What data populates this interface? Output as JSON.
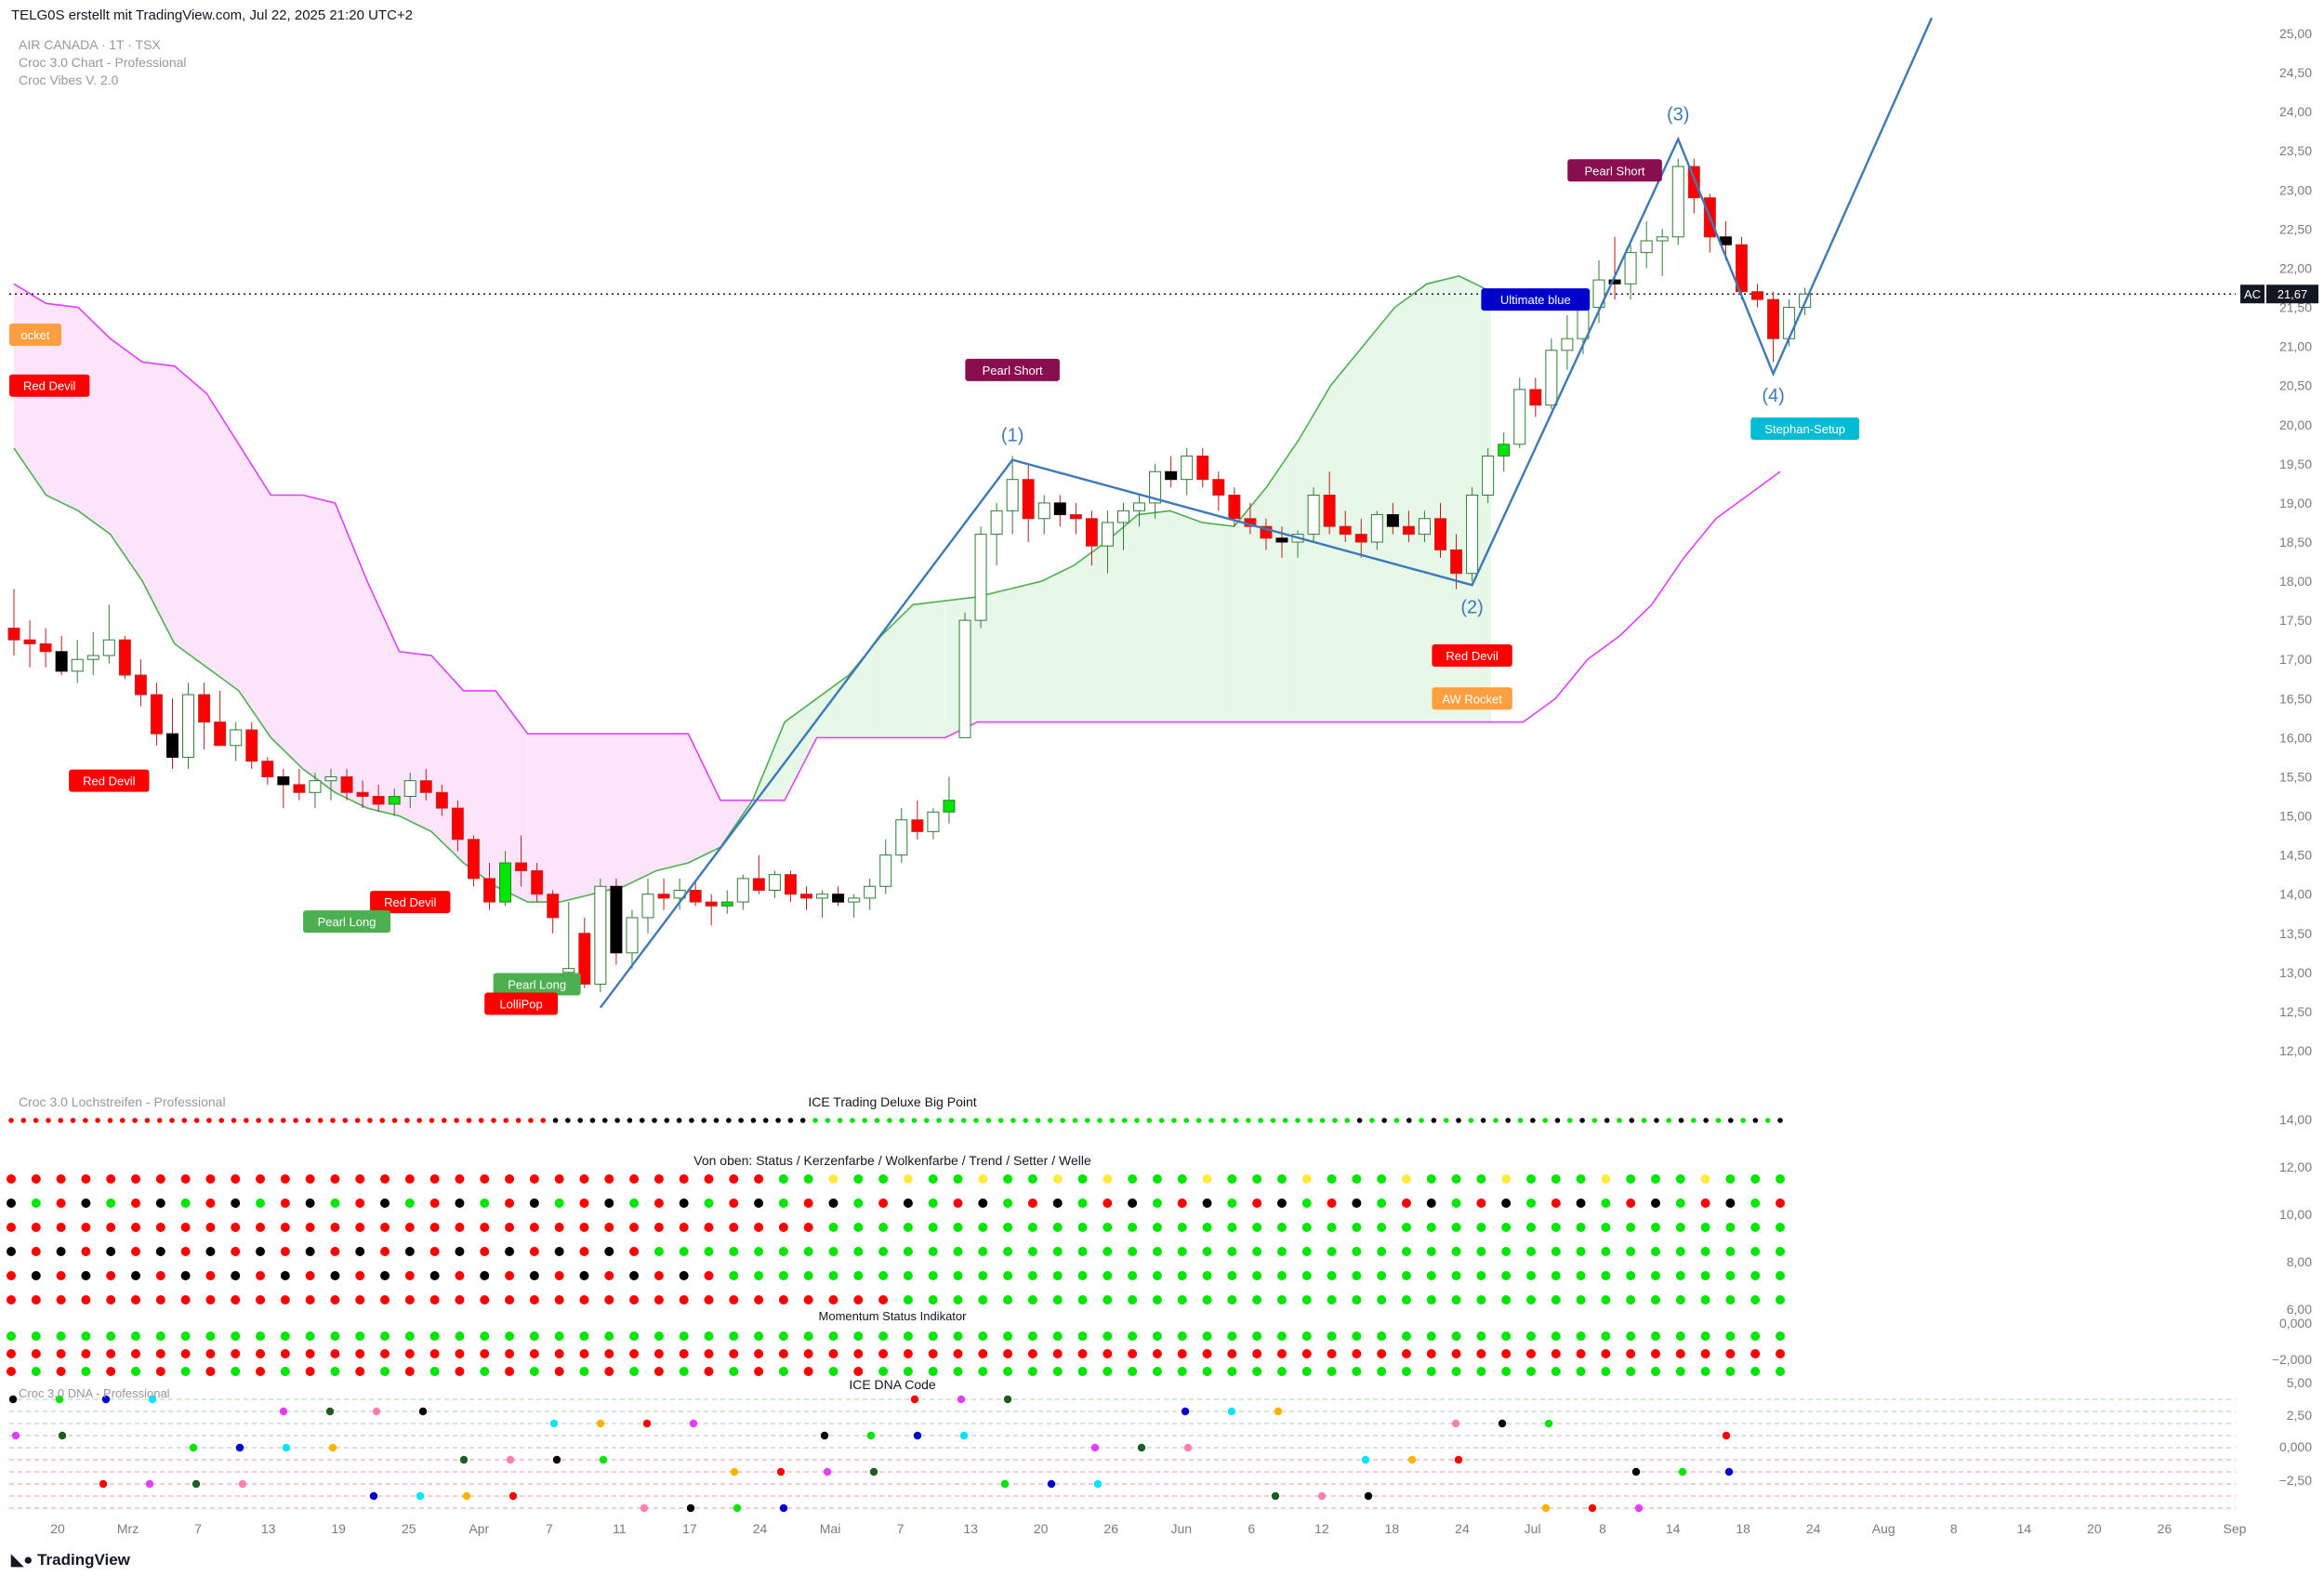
{
  "header": {
    "caption": "TELG0S erstellt mit TradingView.com, Jul 22, 2025 21:20 UTC+2"
  },
  "legend": {
    "symbol": "AIR CANADA · 1T · TSX",
    "indicator1": "Croc 3.0 Chart - Professional",
    "indicator2": "Croc Vibes V. 2.0"
  },
  "panes": {
    "lochstreifen": "Croc 3.0 Lochstreifen - Professional",
    "ice_big_point": "ICE Trading Deluxe Big Point",
    "status_title": "Von oben: Status / Kerzenfarbe / Wolkenfarbe / Trend / Setter / Welle",
    "momentum": "Momentum Status Indikator",
    "dna_pane": "Croc 3.0 DNA - Professional",
    "dna_title": "ICE DNA Code"
  },
  "branding": {
    "tv": "TradingView"
  },
  "colors": {
    "bull": "#00e600",
    "bear": "#ff0000",
    "wave": "#3d7ab8",
    "cloud_upper": "#e040fb",
    "cloud_lower": "#4caf50",
    "cloud_fill_bear": "#fce4fa",
    "cloud_fill_bull": "#e8f8e8",
    "price_line": "#131722"
  },
  "chart_data": {
    "type": "candlestick",
    "symbol": "AC",
    "exchange": "TSX",
    "interval": "1T",
    "last_price": 21.67,
    "price_label": "21,67",
    "ticker_label": "AC",
    "y_ticks": [
      "25,00",
      "24,50",
      "24,00",
      "23,50",
      "23,00",
      "22,50",
      "22,00",
      "21,50",
      "21,00",
      "20,50",
      "20,00",
      "19,50",
      "19,00",
      "18,50",
      "18,00",
      "17,50",
      "17,00",
      "16,50",
      "16,00",
      "15,50",
      "15,00",
      "14,50",
      "14,00",
      "13,50",
      "13,00",
      "12,50",
      "12,00"
    ],
    "y_range": [
      12.0,
      25.0
    ],
    "x_ticks": [
      "20",
      "Mrz",
      "7",
      "13",
      "19",
      "25",
      "Apr",
      "7",
      "11",
      "17",
      "24",
      "Mai",
      "7",
      "13",
      "20",
      "26",
      "Jun",
      "6",
      "12",
      "18",
      "24",
      "Jul",
      "8",
      "14",
      "18",
      "24",
      "Aug",
      "8",
      "14",
      "20",
      "26",
      "Sep"
    ],
    "ohlc": [
      [
        17.4,
        17.9,
        17.05,
        17.25
      ],
      [
        17.25,
        17.5,
        16.9,
        17.2
      ],
      [
        17.2,
        17.4,
        16.9,
        17.1
      ],
      [
        17.1,
        17.3,
        16.8,
        16.85
      ],
      [
        16.85,
        17.25,
        16.7,
        17.0
      ],
      [
        17.0,
        17.35,
        16.8,
        17.05
      ],
      [
        17.05,
        17.7,
        16.95,
        17.25
      ],
      [
        17.25,
        17.3,
        16.75,
        16.8
      ],
      [
        16.8,
        17.0,
        16.4,
        16.55
      ],
      [
        16.55,
        16.7,
        15.9,
        16.05
      ],
      [
        16.05,
        16.5,
        15.6,
        15.75
      ],
      [
        15.75,
        16.7,
        15.6,
        16.55
      ],
      [
        16.55,
        16.7,
        15.85,
        16.2
      ],
      [
        16.2,
        16.6,
        15.9,
        15.9
      ],
      [
        15.9,
        16.2,
        15.7,
        16.1
      ],
      [
        16.1,
        16.2,
        15.6,
        15.7
      ],
      [
        15.7,
        15.75,
        15.4,
        15.5
      ],
      [
        15.5,
        15.6,
        15.1,
        15.4
      ],
      [
        15.4,
        15.6,
        15.2,
        15.3
      ],
      [
        15.3,
        15.55,
        15.1,
        15.45
      ],
      [
        15.45,
        15.6,
        15.2,
        15.5
      ],
      [
        15.5,
        15.6,
        15.2,
        15.3
      ],
      [
        15.3,
        15.45,
        15.1,
        15.25
      ],
      [
        15.25,
        15.4,
        15.05,
        15.15
      ],
      [
        15.15,
        15.35,
        15.0,
        15.25
      ],
      [
        15.25,
        15.55,
        15.1,
        15.45
      ],
      [
        15.45,
        15.6,
        15.2,
        15.3
      ],
      [
        15.3,
        15.4,
        15.0,
        15.1
      ],
      [
        15.1,
        15.2,
        14.55,
        14.7
      ],
      [
        14.7,
        14.75,
        14.1,
        14.2
      ],
      [
        14.2,
        14.4,
        13.8,
        13.9
      ],
      [
        13.9,
        14.55,
        13.85,
        14.4
      ],
      [
        14.4,
        14.75,
        14.1,
        14.3
      ],
      [
        14.3,
        14.4,
        13.9,
        14.0
      ],
      [
        14.0,
        14.05,
        13.5,
        13.7
      ],
      [
        13.0,
        13.9,
        12.9,
        13.05
      ],
      [
        13.5,
        13.7,
        12.8,
        12.85
      ],
      [
        12.85,
        14.2,
        12.75,
        14.1
      ],
      [
        14.1,
        14.2,
        13.1,
        13.25
      ],
      [
        13.25,
        13.8,
        13.05,
        13.7
      ],
      [
        13.7,
        14.2,
        13.5,
        14.0
      ],
      [
        14.0,
        14.2,
        13.8,
        13.95
      ],
      [
        13.95,
        14.2,
        13.8,
        14.05
      ],
      [
        14.05,
        14.15,
        13.85,
        13.9
      ],
      [
        13.9,
        14.0,
        13.6,
        13.85
      ],
      [
        13.85,
        14.05,
        13.75,
        13.9
      ],
      [
        13.9,
        14.25,
        13.8,
        14.2
      ],
      [
        14.2,
        14.5,
        14.0,
        14.05
      ],
      [
        14.05,
        14.3,
        13.95,
        14.25
      ],
      [
        14.25,
        14.3,
        13.9,
        14.0
      ],
      [
        14.0,
        14.1,
        13.8,
        13.95
      ],
      [
        13.95,
        14.05,
        13.7,
        14.0
      ],
      [
        14.0,
        14.1,
        13.85,
        13.9
      ],
      [
        13.9,
        14.0,
        13.7,
        13.95
      ],
      [
        13.95,
        14.2,
        13.8,
        14.1
      ],
      [
        14.1,
        14.7,
        14.0,
        14.5
      ],
      [
        14.5,
        15.1,
        14.4,
        14.95
      ],
      [
        14.95,
        15.2,
        14.7,
        14.8
      ],
      [
        14.8,
        15.1,
        14.7,
        15.05
      ],
      [
        15.05,
        15.5,
        14.9,
        15.2
      ],
      [
        16.0,
        17.6,
        16.0,
        17.5
      ],
      [
        17.5,
        18.7,
        17.4,
        18.6
      ],
      [
        18.6,
        19.0,
        18.2,
        18.9
      ],
      [
        18.9,
        19.6,
        18.6,
        19.3
      ],
      [
        19.3,
        19.5,
        18.5,
        18.8
      ],
      [
        18.8,
        19.1,
        18.6,
        19.0
      ],
      [
        19.0,
        19.1,
        18.7,
        18.85
      ],
      [
        18.85,
        19.0,
        18.6,
        18.8
      ],
      [
        18.8,
        18.9,
        18.2,
        18.45
      ],
      [
        18.45,
        18.9,
        18.1,
        18.75
      ],
      [
        18.75,
        19.0,
        18.4,
        18.9
      ],
      [
        18.9,
        19.1,
        18.7,
        19.0
      ],
      [
        19.0,
        19.5,
        18.8,
        19.4
      ],
      [
        19.4,
        19.6,
        19.2,
        19.3
      ],
      [
        19.3,
        19.7,
        19.1,
        19.6
      ],
      [
        19.6,
        19.7,
        19.2,
        19.3
      ],
      [
        19.3,
        19.4,
        18.9,
        19.1
      ],
      [
        19.1,
        19.2,
        18.7,
        18.8
      ],
      [
        18.8,
        19.0,
        18.6,
        18.7
      ],
      [
        18.7,
        18.8,
        18.4,
        18.55
      ],
      [
        18.55,
        18.7,
        18.3,
        18.5
      ],
      [
        18.5,
        18.65,
        18.3,
        18.6
      ],
      [
        18.6,
        19.2,
        18.5,
        19.1
      ],
      [
        19.1,
        19.4,
        18.6,
        18.7
      ],
      [
        18.7,
        18.9,
        18.5,
        18.6
      ],
      [
        18.6,
        18.8,
        18.3,
        18.5
      ],
      [
        18.5,
        18.9,
        18.4,
        18.85
      ],
      [
        18.85,
        19.0,
        18.6,
        18.7
      ],
      [
        18.7,
        18.9,
        18.5,
        18.6
      ],
      [
        18.6,
        18.9,
        18.5,
        18.8
      ],
      [
        18.8,
        19.0,
        18.3,
        18.4
      ],
      [
        18.4,
        18.6,
        17.9,
        18.1
      ],
      [
        18.1,
        19.2,
        18.0,
        19.1
      ],
      [
        19.1,
        19.7,
        19.0,
        19.6
      ],
      [
        19.6,
        19.9,
        19.4,
        19.75
      ],
      [
        19.75,
        20.6,
        19.7,
        20.45
      ],
      [
        20.45,
        20.6,
        20.1,
        20.25
      ],
      [
        20.25,
        21.1,
        20.2,
        20.95
      ],
      [
        20.95,
        21.4,
        20.7,
        21.1
      ],
      [
        21.1,
        21.7,
        20.9,
        21.5
      ],
      [
        21.5,
        22.1,
        21.3,
        21.85
      ],
      [
        21.85,
        22.4,
        21.6,
        21.8
      ],
      [
        21.8,
        22.3,
        21.6,
        22.2
      ],
      [
        22.2,
        22.6,
        22.0,
        22.35
      ],
      [
        22.35,
        22.5,
        21.9,
        22.4
      ],
      [
        22.4,
        23.4,
        22.3,
        23.3
      ],
      [
        23.3,
        23.4,
        22.7,
        22.9
      ],
      [
        22.9,
        22.95,
        22.2,
        22.4
      ],
      [
        22.4,
        22.6,
        22.1,
        22.3
      ],
      [
        22.3,
        22.4,
        21.6,
        21.7
      ],
      [
        21.7,
        21.8,
        21.5,
        21.6
      ],
      [
        21.6,
        21.7,
        20.8,
        21.1
      ],
      [
        21.1,
        21.6,
        21.0,
        21.5
      ],
      [
        21.5,
        21.75,
        21.4,
        21.67
      ]
    ],
    "cloud_upper": [
      21.8,
      21.55,
      21.5,
      21.1,
      20.8,
      20.75,
      20.4,
      19.75,
      19.1,
      19.1,
      19.0,
      18.0,
      17.1,
      17.05,
      16.6,
      16.6,
      16.05,
      16.05,
      16.05,
      16.05,
      16.05,
      16.05,
      15.2,
      15.2,
      15.2,
      16.0,
      16.0,
      16.0,
      16.0,
      16.0,
      16.2,
      16.2,
      16.2,
      16.2,
      16.2,
      16.2,
      16.2,
      16.2,
      16.2,
      16.2,
      16.2,
      16.2,
      16.2,
      16.2,
      16.2,
      16.2,
      16.2,
      16.2,
      16.5,
      17.0,
      17.3,
      17.7,
      18.3,
      18.8,
      19.1,
      19.4
    ],
    "cloud_lower": [
      19.7,
      19.1,
      18.9,
      18.6,
      18.0,
      17.2,
      16.9,
      16.6,
      16.0,
      15.6,
      15.3,
      15.1,
      15.0,
      14.8,
      14.4,
      14.1,
      13.9,
      13.9,
      14.0,
      14.1,
      14.3,
      14.4,
      14.6,
      15.2,
      16.2,
      16.5,
      16.8,
      17.3,
      17.7,
      17.75,
      17.8,
      17.9,
      18.0,
      18.2,
      18.5,
      18.85,
      18.9,
      18.75,
      18.7,
      19.2,
      19.8,
      20.5,
      21.0,
      21.5,
      21.8,
      21.9,
      21.7
    ],
    "wave_points": [
      {
        "label": "",
        "date_idx": 37,
        "price": 12.55
      },
      {
        "label": "(1)",
        "date_idx": 63,
        "price": 19.55
      },
      {
        "label": "(2)",
        "date_idx": 92,
        "price": 17.95
      },
      {
        "label": "(3)",
        "date_idx": 105,
        "price": 23.65
      },
      {
        "label": "(4)",
        "date_idx": 111,
        "price": 20.65
      },
      {
        "label": "",
        "date_idx": 121,
        "price": 25.2
      }
    ],
    "signals": [
      {
        "text": "Pearl Short",
        "date_idx": 63,
        "price": 20.7,
        "color": "#880e4f"
      },
      {
        "text": "Pearl Short",
        "date_idx": 101,
        "price": 23.25,
        "color": "#880e4f"
      },
      {
        "text": "Ultimate blue",
        "date_idx": 96,
        "price": 21.6,
        "color": "#0000cc"
      },
      {
        "text": "Stephan-Setup",
        "date_idx": 113,
        "price": 19.95,
        "color": "#00bcd4"
      },
      {
        "text": "Red Devil",
        "date_idx": 92,
        "price": 17.05,
        "color": "#ff0000"
      },
      {
        "text": "AW Rocket",
        "date_idx": 92,
        "price": 16.5,
        "color": "#ff9f40"
      },
      {
        "text": "Red Devil",
        "date_idx": 6,
        "price": 15.45,
        "color": "#ff0000"
      },
      {
        "text": "Red Devil",
        "date_idx": 25,
        "price": 13.9,
        "color": "#ff0000"
      },
      {
        "text": "Pearl Long",
        "date_idx": 21,
        "price": 13.65,
        "color": "#4caf50"
      },
      {
        "text": "Pearl Long",
        "date_idx": 33,
        "price": 12.85,
        "color": "#4caf50"
      },
      {
        "text": "LolliPop",
        "date_idx": 32,
        "price": 12.6,
        "color": "#ff0000"
      },
      {
        "text": "Red Devil",
        "date_idx": 0,
        "price": 20.5,
        "color": "#ff0000"
      },
      {
        "text": "ocket",
        "date_idx": 0,
        "price": 21.15,
        "color": "#ff9f40"
      }
    ],
    "lower_ticks": {
      "ice": [
        "14,00"
      ],
      "status": [
        "12,00",
        "10,00",
        "8,00",
        "6,00"
      ],
      "momentum": [
        "0,000",
        "−2,000"
      ],
      "dna": [
        "5,00",
        "2,50",
        "0,000",
        "−2,50"
      ]
    }
  }
}
